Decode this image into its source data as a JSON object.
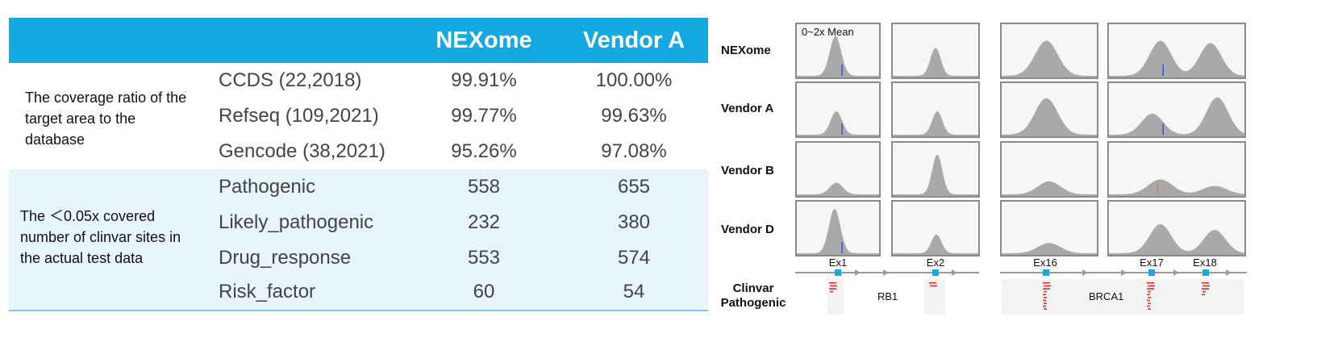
{
  "table": {
    "headers": [
      "",
      "",
      "NEXome",
      "Vendor A"
    ],
    "groups": [
      {
        "label": "The coverage ratio of the target area to the database",
        "rows": [
          {
            "name": "CCDS (22,2018)",
            "nexome": "99.91%",
            "vendor_a": "100.00%"
          },
          {
            "name": "Refseq (109,2021)",
            "nexome": "99.77%",
            "vendor_a": "99.63%"
          },
          {
            "name": "Gencode (38,2021)",
            "nexome": "95.26%",
            "vendor_a": "97.08%"
          }
        ]
      },
      {
        "label": "The ＜0.05x covered number of clinvar sites in the actual test data",
        "rows": [
          {
            "name": "Pathogenic",
            "nexome": "558",
            "vendor_a": "655"
          },
          {
            "name": "Likely_pathogenic",
            "nexome": "232",
            "vendor_a": "380"
          },
          {
            "name": "Drug_response",
            "nexome": "553",
            "vendor_a": "574"
          },
          {
            "name": "Risk_factor",
            "nexome": "60",
            "vendor_a": "54"
          }
        ]
      }
    ],
    "colors": {
      "header_bg": "#15a9e1",
      "band_bg": "#e8f4fb"
    }
  },
  "coverage_panel": {
    "scale_label": "0~2x Mean",
    "row_labels": [
      "NEXome",
      "Vendor A",
      "Vendor B",
      "Vendor D"
    ],
    "exons": [
      "Ex1",
      "Ex2",
      "Ex16",
      "Ex17",
      "Ex18"
    ],
    "genes": [
      "RB1",
      "BRCA1"
    ],
    "clinvar_label_line1": "Clinvar",
    "clinvar_label_line2": "Pathogenic",
    "colors": {
      "histogram": "#a9a9a9",
      "exon": "#17a8e0",
      "variant": "#e03030"
    }
  }
}
